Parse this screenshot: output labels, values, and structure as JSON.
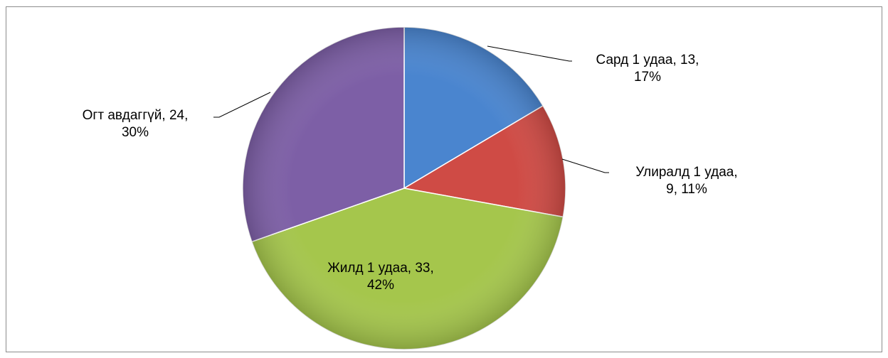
{
  "chart_data": {
    "type": "pie",
    "values": [
      13,
      9,
      33,
      24
    ],
    "value_labels": [
      [
        "Сард 1 удаа, 13,",
        "17%"
      ],
      [
        "Улиралд 1 удаа,",
        "9, 11%"
      ],
      [
        "Жилд 1 удаа, 33,",
        "42%"
      ],
      [
        "Огт авдаггүй, 24,",
        "30%"
      ]
    ],
    "colors": [
      "#4a85cf",
      "#cf4b45",
      "#a5c64c",
      "#7d5fa6"
    ]
  }
}
